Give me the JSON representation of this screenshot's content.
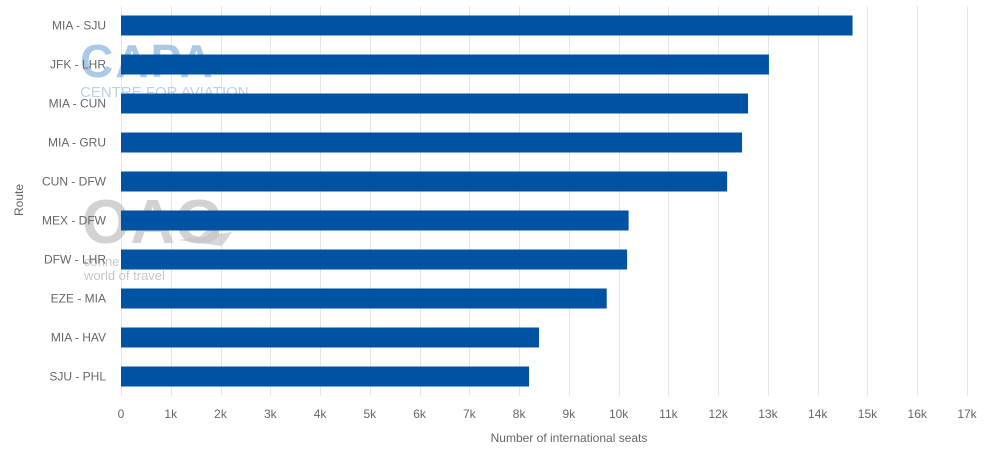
{
  "chart_data": {
    "type": "bar",
    "orientation": "horizontal",
    "title": "",
    "xlabel": "Number of international seats",
    "ylabel": "Route",
    "categories": [
      "MIA - SJU",
      "JFK - LHR",
      "MIA - CUN",
      "MIA - GRU",
      "CUN - DFW",
      "MEX - DFW",
      "DFW - LHR",
      "EZE - MIA",
      "MIA - HAV",
      "SJU - PHL"
    ],
    "values": [
      14700,
      13020,
      12600,
      12480,
      12180,
      10200,
      10170,
      9760,
      8400,
      8200
    ],
    "xlim": [
      0,
      17000
    ],
    "x_ticks": [
      0,
      1000,
      2000,
      3000,
      4000,
      5000,
      6000,
      7000,
      8000,
      9000,
      10000,
      11000,
      12000,
      13000,
      14000,
      15000,
      16000,
      17000
    ],
    "x_tick_labels": [
      "0",
      "1k",
      "2k",
      "3k",
      "4k",
      "5k",
      "6k",
      "7k",
      "8k",
      "9k",
      "10k",
      "11k",
      "12k",
      "13k",
      "14k",
      "15k",
      "16k",
      "17k"
    ],
    "grid": "vertical",
    "bar_color": "#0052a3",
    "legend": "none"
  },
  "watermarks": {
    "capa": {
      "logo": "CAPA",
      "subtitle": "CENTRE FOR AVIATION"
    },
    "oag": {
      "logo": "OAG",
      "subtitle_line1": "conne",
      "subtitle_line2": "world of travel"
    }
  }
}
